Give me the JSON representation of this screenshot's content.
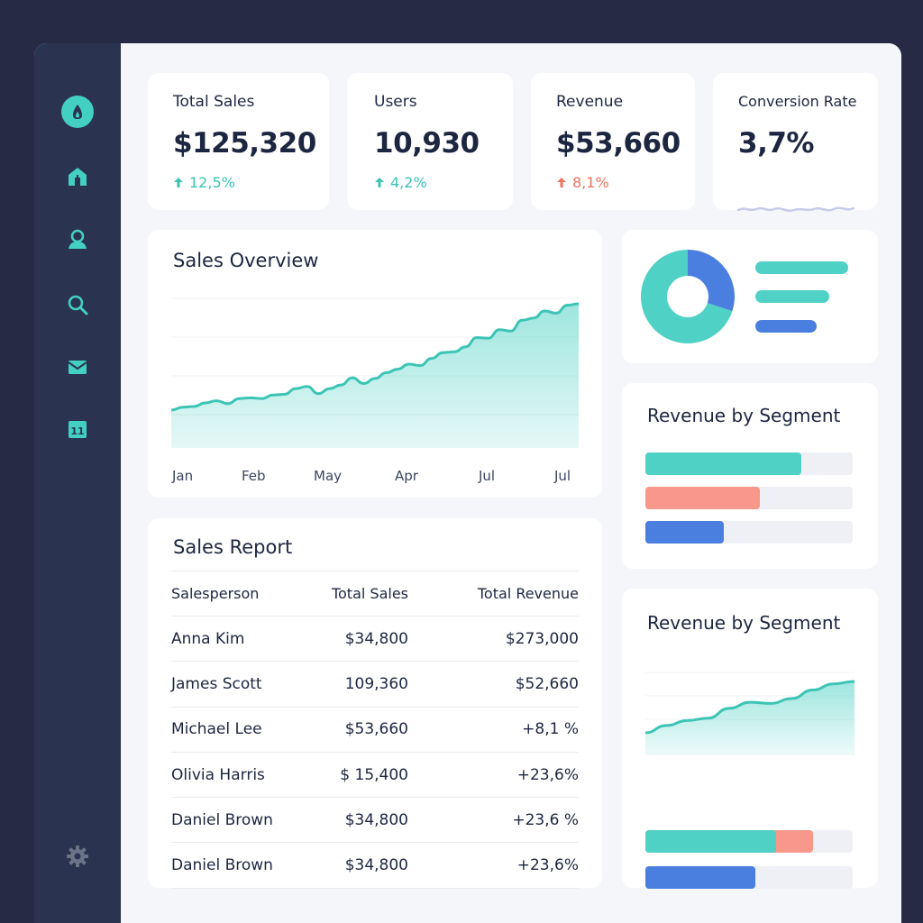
{
  "sidebar": {
    "icons": [
      "logo-icon",
      "home-icon",
      "user-icon",
      "search-icon",
      "mail-icon",
      "calendar-icon",
      "gear-icon"
    ]
  },
  "stats": [
    {
      "title": "Total Sales",
      "value": "$125,320",
      "delta": "12,5%",
      "direction": "up"
    },
    {
      "title": "Users",
      "value": "10,930",
      "delta": "4,2%",
      "direction": "up"
    },
    {
      "title": "Revenue",
      "value": "$53,660",
      "delta": "8,1%",
      "direction": "up-negative"
    },
    {
      "title": "Conversion Rate",
      "value": "3,7%"
    }
  ],
  "sales_overview": {
    "title": "Sales Overview",
    "chart_data": {
      "type": "area",
      "x_ticks": [
        "Jan",
        "Feb",
        "May",
        "Apr",
        "Jul",
        "Jul"
      ],
      "values": [
        10,
        14,
        15,
        20,
        23,
        19,
        26,
        27,
        26,
        31,
        32,
        40,
        43,
        33,
        40,
        45,
        55,
        47,
        54,
        62,
        67,
        74,
        72,
        82,
        90,
        91,
        98,
        111,
        110,
        122,
        120,
        135,
        138,
        148,
        145,
        156,
        158
      ]
    }
  },
  "donut": {
    "chart_data": {
      "type": "pie",
      "values": [
        70,
        30
      ],
      "colors": [
        "#4fd1c5",
        "#4a7fe0"
      ]
    },
    "legend_colors": [
      "#4fd1c5",
      "#4fd1c5",
      "#4a7fe0"
    ],
    "legend_fractions": [
      1.0,
      0.8,
      0.66
    ]
  },
  "segment1": {
    "title": "Revenue by Segment",
    "chart_data": {
      "type": "bar",
      "values": [
        0.75,
        0.55,
        0.38
      ],
      "colors": [
        "#4fd1c5",
        "#f7988a",
        "#4a7fe0"
      ]
    }
  },
  "sales_report": {
    "title": "Sales Report",
    "columns": [
      "Salesperson",
      "Total Sales",
      "Total Revenue"
    ],
    "rows": [
      {
        "name": "Anna Kim",
        "sales": "$34,800",
        "revenue": "$273,000",
        "tone": "teal"
      },
      {
        "name": "James Scott",
        "sales": "109,360",
        "revenue": "$52,660",
        "tone": "plain"
      },
      {
        "name": "Michael Lee",
        "sales": "$53,660",
        "revenue": "+8,1 %",
        "tone": "teal"
      },
      {
        "name": "Olivia Harris",
        "sales": "$ 15,400",
        "revenue": "+23,6%",
        "tone": "coral"
      },
      {
        "name": "Daniel Brown",
        "sales": "$34,800",
        "revenue": "+23,6 %",
        "tone": "teal"
      },
      {
        "name": "Daniel Brown",
        "sales": "$34,800",
        "revenue": "+23,6%",
        "tone": "teal"
      }
    ]
  },
  "segment2": {
    "title": "Revenue by Segment",
    "chart_data": {
      "type": "area",
      "values": [
        10,
        16,
        20,
        22,
        30,
        35,
        34,
        38,
        45,
        50,
        52
      ]
    },
    "bars": [
      {
        "teal": 0.63,
        "coral": 0.81
      },
      {
        "blue": 0.53
      }
    ]
  },
  "colors": {
    "teal": "#4fd1c5",
    "coral": "#f7988a",
    "blue": "#4a7fe0",
    "sidebar": "#2a3350"
  }
}
